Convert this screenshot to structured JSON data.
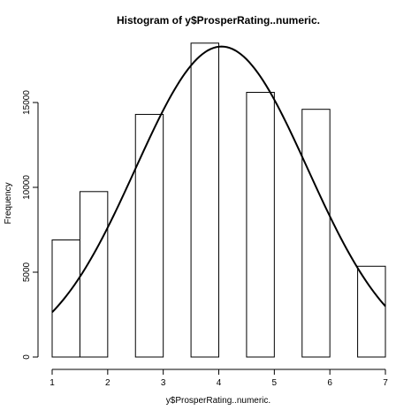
{
  "chart_data": {
    "type": "bar",
    "title": "Histogram of y$ProsperRating..numeric.",
    "xlabel": "y$ProsperRating..numeric.",
    "ylabel": "Frequency",
    "bins": [
      {
        "x0": 1.0,
        "x1": 1.5,
        "count": 6900
      },
      {
        "x0": 1.5,
        "x1": 2.0,
        "count": 9750
      },
      {
        "x0": 2.5,
        "x1": 3.0,
        "count": 14300
      },
      {
        "x0": 3.5,
        "x1": 4.0,
        "count": 18500
      },
      {
        "x0": 4.5,
        "x1": 5.0,
        "count": 15600
      },
      {
        "x0": 5.5,
        "x1": 6.0,
        "count": 14600
      },
      {
        "x0": 6.5,
        "x1": 7.0,
        "count": 5350
      }
    ],
    "xlim": [
      1,
      7
    ],
    "ylim": [
      0,
      18500
    ],
    "x_ticks": [
      "1",
      "2",
      "3",
      "4",
      "5",
      "6",
      "7"
    ],
    "y_ticks": [
      "0",
      "5000",
      "10000",
      "15000"
    ],
    "overlay_curve": {
      "type": "normal",
      "mean": 4.05,
      "sd": 1.55,
      "peak": 18300
    },
    "grid": false
  }
}
